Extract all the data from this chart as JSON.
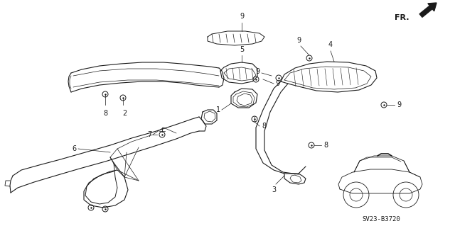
{
  "background_color": "#ffffff",
  "line_color": "#1a1a1a",
  "diagram_code": "SV23-B3720",
  "fig_width": 6.4,
  "fig_height": 3.19,
  "dpi": 100
}
